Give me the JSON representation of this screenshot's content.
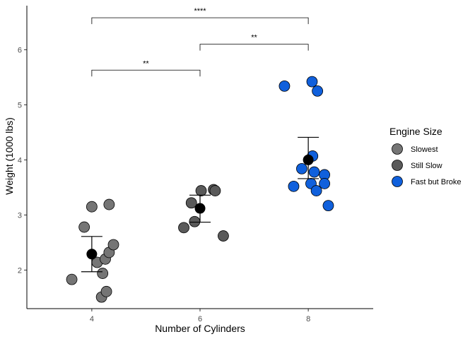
{
  "chart_data": {
    "type": "scatter",
    "xlabel": "Number of Cylinders",
    "ylabel": "Weight (1000 lbs)",
    "xlim": [
      2.8,
      9.2
    ],
    "ylim": [
      1.3,
      6.8
    ],
    "x_ticks": [
      4,
      6,
      8
    ],
    "y_ticks": [
      2,
      3,
      4,
      5,
      6
    ],
    "grid": false,
    "legend": {
      "title": "Engine Size",
      "placement": "right",
      "entries": [
        {
          "label": "Slowest",
          "color": "#757575"
        },
        {
          "label": "Still Slow",
          "color": "#5a5a5a"
        },
        {
          "label": "Fast but Broke",
          "color": "#1060dc"
        }
      ]
    },
    "series": [
      {
        "name": "Slowest",
        "color": "#757575",
        "points": [
          [
            3.63,
            1.83
          ],
          [
            4.0,
            3.15
          ],
          [
            4.18,
            1.51
          ],
          [
            4.27,
            1.61
          ],
          [
            4.32,
            3.19
          ],
          [
            4.1,
            2.14
          ],
          [
            4.2,
            1.94
          ],
          [
            4.25,
            2.2
          ],
          [
            4.32,
            2.32
          ],
          [
            4.4,
            2.46
          ],
          [
            3.86,
            2.78
          ]
        ]
      },
      {
        "name": "Still Slow",
        "color": "#5a5a5a",
        "points": [
          [
            5.7,
            2.77
          ],
          [
            5.84,
            3.22
          ],
          [
            5.9,
            2.88
          ],
          [
            6.02,
            3.44
          ],
          [
            6.25,
            3.46
          ],
          [
            6.28,
            3.44
          ],
          [
            6.43,
            2.62
          ]
        ]
      },
      {
        "name": "Fast but Broke",
        "color": "#1060dc",
        "points": [
          [
            7.56,
            5.34
          ],
          [
            8.07,
            5.42
          ],
          [
            8.17,
            5.25
          ],
          [
            7.73,
            3.52
          ],
          [
            7.88,
            3.84
          ],
          [
            8.05,
            3.57
          ],
          [
            8.08,
            4.07
          ],
          [
            8.11,
            3.78
          ],
          [
            8.15,
            3.44
          ],
          [
            8.3,
            3.73
          ],
          [
            8.3,
            3.57
          ],
          [
            8.37,
            3.17
          ]
        ]
      }
    ],
    "summary": [
      {
        "x": 4,
        "mean": 2.29,
        "lower": 1.97,
        "upper": 2.61
      },
      {
        "x": 6,
        "mean": 3.12,
        "lower": 2.87,
        "upper": 3.36
      },
      {
        "x": 8,
        "mean": 4.0,
        "lower": 3.66,
        "upper": 4.41
      }
    ],
    "significance": [
      {
        "x1": 4,
        "x2": 8,
        "y": 6.58,
        "label": "****"
      },
      {
        "x1": 6,
        "x2": 8,
        "y": 6.1,
        "label": "**"
      },
      {
        "x1": 4,
        "x2": 6,
        "y": 5.63,
        "label": "**"
      }
    ]
  }
}
